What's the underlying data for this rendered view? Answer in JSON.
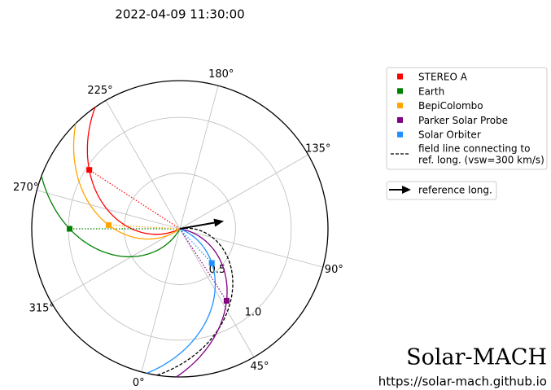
{
  "chart_data": {
    "type": "polar",
    "title": "2022-04-09 11:30:00",
    "rlim": [
      0,
      1.33
    ],
    "rticks": [
      0.5,
      {
        "value": 1,
        "label": "1.0"
      }
    ],
    "thetaticks": [
      {
        "value": 0,
        "label": "0°"
      },
      {
        "value": 45,
        "label": "45°"
      },
      {
        "value": 90,
        "label": "90°"
      },
      {
        "value": 135,
        "label": "135°"
      },
      {
        "value": 180,
        "label": "180°"
      },
      {
        "value": 225,
        "label": "225°"
      },
      {
        "value": 270,
        "label": "270°"
      },
      {
        "value": 315,
        "label": "315°"
      }
    ],
    "series": [
      {
        "name": "STEREO A",
        "color": "#ff0000",
        "theta": 252,
        "r": 0.97
      },
      {
        "name": "Earth",
        "color": "#008000",
        "theta": 285,
        "r": 0.99
      },
      {
        "name": "BepiColombo",
        "color": "#ffa500",
        "theta": 282,
        "r": 0.64
      },
      {
        "name": "Parker Solar Probe",
        "color": "#800080",
        "theta": 48,
        "r": 0.77
      },
      {
        "name": "Solar Orbiter",
        "color": "#1e90ff",
        "theta": 58,
        "r": 0.42
      }
    ],
    "field_line_label": [
      "field line connecting to",
      "ref. long. (vsw=300 km/s)"
    ],
    "reference_vsw": 300,
    "reference": {
      "label": "reference long.",
      "theta": 115
    },
    "brand": "Solar-MACH",
    "url": "https://solar-mach.github.io"
  }
}
